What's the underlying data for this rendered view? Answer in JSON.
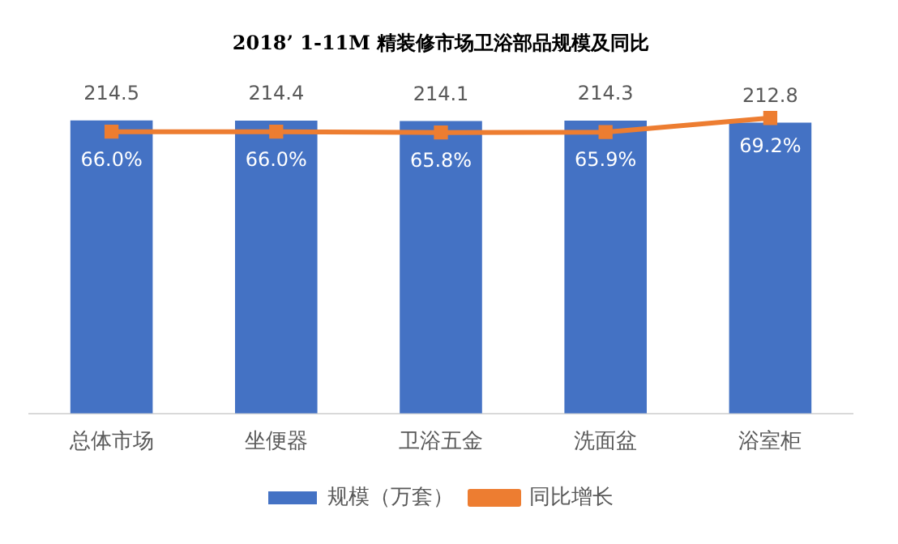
{
  "chart_data": {
    "type": "bar",
    "title": "2018’ 1-11M 精装修市场卫浴部品规模及同比",
    "categories": [
      "总体市场",
      "坐便器",
      "卫浴五金",
      "洗面盆",
      "浴室柜"
    ],
    "series": [
      {
        "name": "规模（万套）",
        "color": "#4472c4",
        "values": [
          214.5,
          214.4,
          214.1,
          214.3,
          212.8
        ],
        "value_labels": [
          "214.5",
          "214.4",
          "214.1",
          "214.3",
          "212.8"
        ]
      },
      {
        "name": "同比增长",
        "type": "line",
        "axis": "y2",
        "color": "#ed7d31",
        "values": [
          66.0,
          66.0,
          65.8,
          65.9,
          69.2
        ],
        "value_labels": [
          "66.0%",
          "66.0%",
          "65.8%",
          "65.9%",
          "69.2%"
        ]
      }
    ],
    "tick_labels": "x",
    "grid": false,
    "legend": "bottom",
    "marker": "square"
  }
}
